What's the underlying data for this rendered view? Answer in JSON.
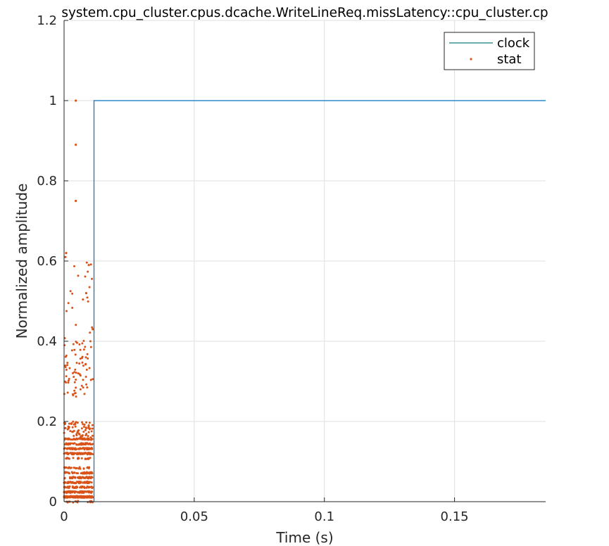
{
  "chart_data": {
    "type": "line",
    "title": "system.cpu_cluster.cpus.dcache.WriteLineReq.missLatency::cpu_cluster.cp",
    "xlabel": "Time (s)",
    "ylabel": "Normalized amplitude",
    "xlim": [
      0,
      0.185
    ],
    "ylim": [
      0,
      1.2
    ],
    "x_ticks": [
      0,
      0.05,
      0.1,
      0.15
    ],
    "x_tick_labels": [
      "0",
      "0.05",
      "0.1",
      "0.15"
    ],
    "y_ticks": [
      0,
      0.2,
      0.4,
      0.6,
      0.8,
      1,
      1.2
    ],
    "y_tick_labels": [
      "0",
      "0.2",
      "0.4",
      "0.6",
      "0.8",
      "1",
      "1.2"
    ],
    "grid": true,
    "legend_position": "top-right",
    "series": [
      {
        "name": "clock",
        "style": "line",
        "color": "#0072BD",
        "legend_color": "#0E7F7A",
        "x": [
          0,
          0.0115,
          0.0115,
          0.185
        ],
        "y": [
          0,
          0,
          1,
          1
        ]
      },
      {
        "name": "stat",
        "style": "points",
        "color": "#D95319",
        "x_range": [
          0,
          0.011
        ],
        "level_bands": [
          {
            "y": [
              0.005,
              0.02
            ],
            "density": "very high"
          },
          {
            "y": [
              0.02,
              0.085
            ],
            "density": "very high"
          },
          {
            "y": [
              0.11,
              0.16
            ],
            "density": "very high"
          },
          {
            "y": [
              0.16,
              0.2
            ],
            "density": "medium"
          },
          {
            "y": [
              0.26,
              0.4
            ],
            "density": "medium"
          },
          {
            "y": [
              0.4,
              0.6
            ],
            "density": "low"
          }
        ],
        "outliers": [
          {
            "x": 0.0045,
            "y": 1.0
          },
          {
            "x": 0.0045,
            "y": 0.89
          },
          {
            "x": 0.0045,
            "y": 0.75
          },
          {
            "x": 0.0005,
            "y": 0.61
          },
          {
            "x": 0.0008,
            "y": 0.62
          },
          {
            "x": 0.0095,
            "y": 0.59
          },
          {
            "x": 0.0085,
            "y": 0.52
          },
          {
            "x": 0.011,
            "y": 0.43
          }
        ]
      }
    ]
  },
  "colors": {
    "axis": "#262626",
    "grid": "#DFDFDF",
    "clock": "#0072BD",
    "stat": "#D95319"
  }
}
